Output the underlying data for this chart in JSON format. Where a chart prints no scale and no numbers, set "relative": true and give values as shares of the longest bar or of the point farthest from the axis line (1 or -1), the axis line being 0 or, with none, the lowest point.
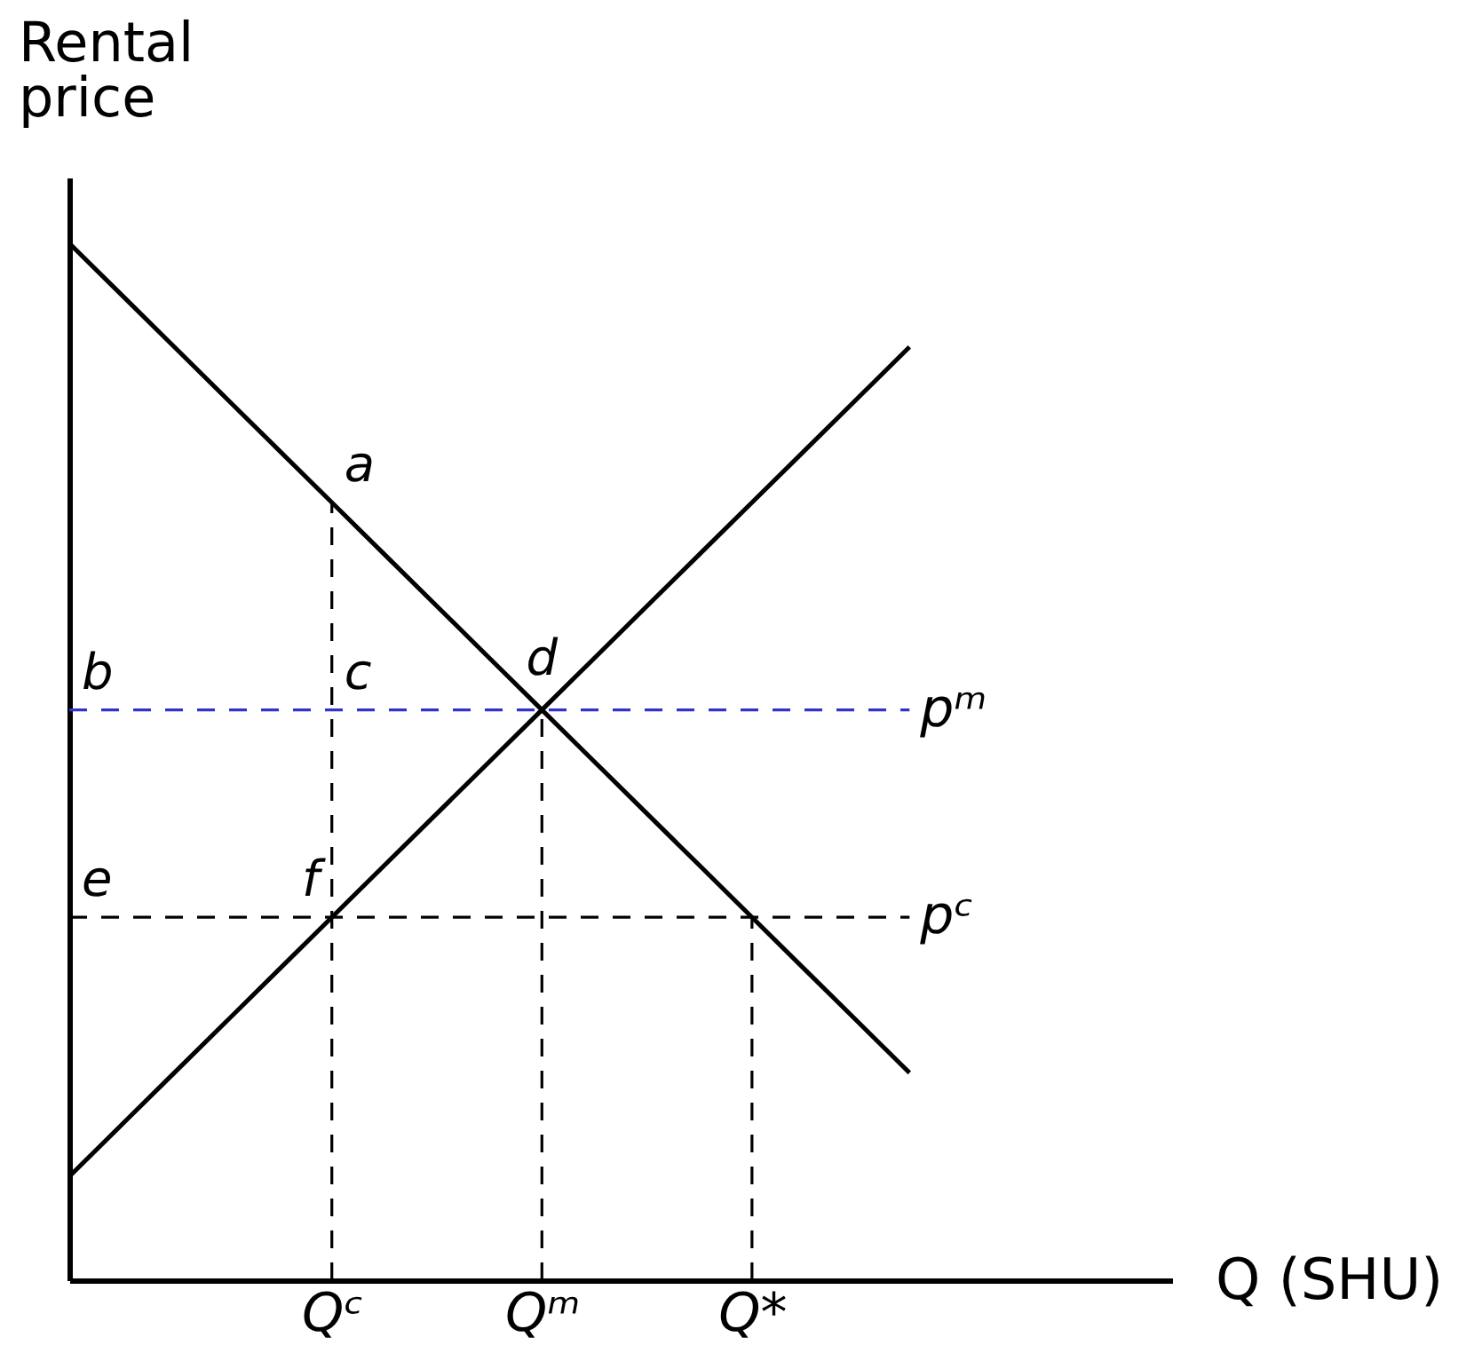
{
  "chart_data": {
    "type": "line",
    "xlabel": "Q (SHU)",
    "ylabel": "Rental price",
    "relative": true,
    "marker": "none",
    "line_style": "solid",
    "categories": [
      null,
      null,
      null,
      null,
      null,
      "Qᶜ",
      null,
      null,
      null,
      "Qᵐ",
      null,
      null,
      null,
      "Q*",
      null,
      null,
      null,
      null,
      null,
      null,
      null,
      null
    ],
    "series": [
      {
        "color": "#000000",
        "values": [
          1,
          0.95,
          0.9,
          0.85,
          0.8,
          0.75,
          0.7,
          0.65,
          0.6,
          0.55,
          0.5,
          0.45,
          0.4,
          0.35,
          0.3,
          0.25,
          0.2,
          null,
          null,
          null,
          null,
          null
        ]
      },
      {
        "color": "#000000",
        "values": [
          0.1,
          0.15,
          0.2,
          0.25,
          0.3,
          0.35,
          0.4,
          0.45,
          0.5,
          0.55,
          0.6,
          0.65,
          0.7,
          0.75,
          0.8,
          0.85,
          0.9,
          null,
          null,
          null,
          null,
          null
        ]
      }
    ],
    "ref_lines": [
      {
        "axis": "y",
        "value": 0.55,
        "label": "pᵐ",
        "color": "#3333cc",
        "line_style": "dashed"
      },
      {
        "axis": "y",
        "value": 0.35,
        "label": "pᶜ",
        "color": "#000000",
        "line_style": "dashed"
      },
      {
        "axis": "x",
        "value": "Qᶜ",
        "color": "#000000",
        "line_style": "dashed"
      },
      {
        "axis": "x",
        "value": "Qᵐ",
        "color": "#000000",
        "line_style": "dashed"
      },
      {
        "axis": "x",
        "value": "Q*",
        "color": "#000000",
        "line_style": "dashed"
      }
    ],
    "annotations": [
      {
        "text": "a",
        "x": "Qᶜ",
        "y": 0.75
      },
      {
        "text": "b",
        "y": 0.55
      },
      {
        "text": "c",
        "x": "Qᶜ",
        "y": 0.55
      },
      {
        "text": "d",
        "x": "Qᵐ",
        "y": 0.55
      },
      {
        "text": "e",
        "y": 0.35
      },
      {
        "text": "f",
        "x": "Qᶜ",
        "y": 0.35
      }
    ]
  }
}
